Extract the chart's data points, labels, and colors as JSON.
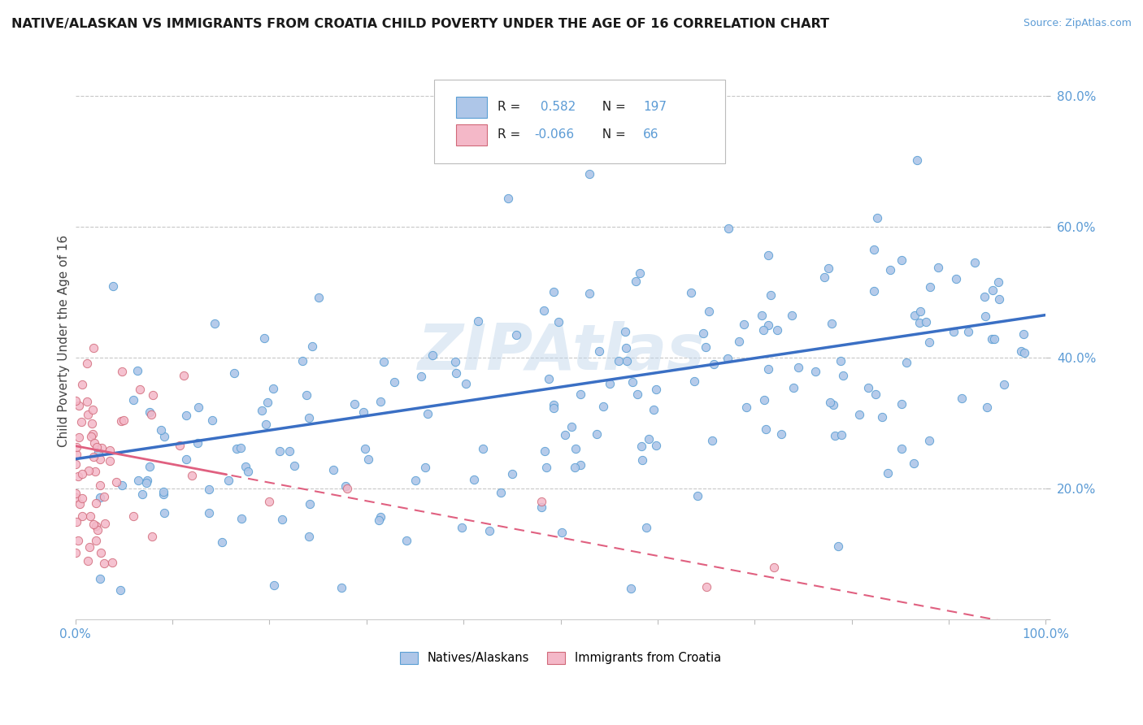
{
  "title": "NATIVE/ALASKAN VS IMMIGRANTS FROM CROATIA CHILD POVERTY UNDER THE AGE OF 16 CORRELATION CHART",
  "source_text": "Source: ZipAtlas.com",
  "ylabel": "Child Poverty Under the Age of 16",
  "xlim": [
    0,
    1
  ],
  "ylim": [
    0,
    0.85
  ],
  "blue_R": 0.582,
  "blue_N": 197,
  "pink_R": -0.066,
  "pink_N": 66,
  "blue_color": "#aec6e8",
  "pink_color": "#f4b8c8",
  "blue_line_color": "#3a6fc4",
  "pink_line_color": "#e06080",
  "blue_marker_edge": "#5a9fd4",
  "pink_marker_edge": "#d06878",
  "legend_blue_label": "Natives/Alaskans",
  "legend_pink_label": "Immigrants from Croatia",
  "watermark": "ZIPAtlas",
  "background_color": "#ffffff",
  "grid_color": "#c8c8c8",
  "tick_color": "#5b9bd5",
  "title_color": "#1a1a1a",
  "ylabel_color": "#444444"
}
